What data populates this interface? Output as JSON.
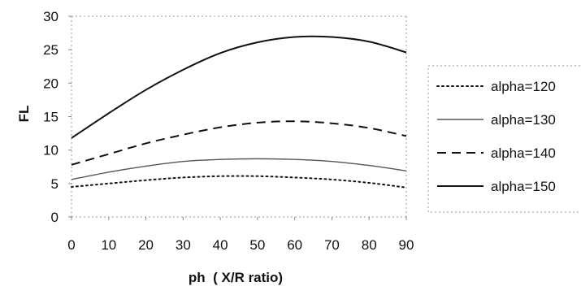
{
  "chart_data": {
    "type": "line",
    "title": "",
    "xlabel": "ph  ( X/R ratio)",
    "ylabel": "FL",
    "xlim": [
      0,
      90
    ],
    "ylim": [
      0,
      30
    ],
    "xticks": [
      0,
      10,
      20,
      30,
      40,
      50,
      60,
      70,
      80,
      90
    ],
    "yticks": [
      0,
      5,
      10,
      15,
      20,
      25,
      30
    ],
    "grid": false,
    "legend_position": "right",
    "x": [
      0,
      10,
      20,
      30,
      40,
      50,
      60,
      70,
      80,
      90
    ],
    "series": [
      {
        "name": "alpha=120",
        "style": "dotted",
        "color": "#111111",
        "values": [
          4.5,
          5.0,
          5.5,
          5.9,
          6.1,
          6.1,
          5.9,
          5.6,
          5.1,
          4.4
        ]
      },
      {
        "name": "alpha=130",
        "style": "solid-thin",
        "color": "#555555",
        "values": [
          5.6,
          6.7,
          7.6,
          8.3,
          8.6,
          8.7,
          8.6,
          8.3,
          7.7,
          6.9
        ]
      },
      {
        "name": "alpha=140",
        "style": "dashed",
        "color": "#111111",
        "values": [
          7.8,
          9.4,
          11.0,
          12.3,
          13.4,
          14.1,
          14.3,
          14.0,
          13.3,
          12.1
        ]
      },
      {
        "name": "alpha=150",
        "style": "solid",
        "color": "#111111",
        "values": [
          11.8,
          15.5,
          19.0,
          22.0,
          24.5,
          26.1,
          26.9,
          26.9,
          26.2,
          24.6
        ]
      }
    ]
  }
}
